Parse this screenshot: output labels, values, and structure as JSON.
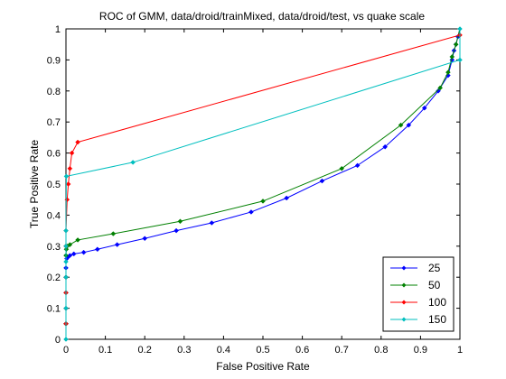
{
  "chart_data": {
    "type": "line",
    "title": "ROC of GMM, data/droid/trainMixed, data/droid/test, vs quake scale",
    "xlabel": "False Positive Rate",
    "ylabel": "True Positive Rate",
    "xlim": [
      0,
      1
    ],
    "ylim": [
      0,
      1
    ],
    "xticks": [
      0,
      0.1,
      0.2,
      0.3,
      0.4,
      0.5,
      0.6,
      0.7,
      0.8,
      0.9,
      1
    ],
    "yticks": [
      0,
      0.1,
      0.2,
      0.3,
      0.4,
      0.5,
      0.6,
      0.7,
      0.8,
      0.9,
      1
    ],
    "xtick_labels": [
      "0",
      "0.1",
      "0.2",
      "0.3",
      "0.4",
      "0.5",
      "0.6",
      "0.7",
      "0.8",
      "0.9",
      "1"
    ],
    "ytick_labels": [
      "0",
      "0.1",
      "0.2",
      "0.3",
      "0.4",
      "0.5",
      "0.6",
      "0.7",
      "0.8",
      "0.9",
      "1"
    ],
    "grid": false,
    "legend_position": "bottom-right",
    "series": [
      {
        "name": "25",
        "color": "#0000ff",
        "x": [
          0,
          0,
          0,
          0,
          0,
          0,
          0,
          0.002,
          0.005,
          0.01,
          0.02,
          0.045,
          0.08,
          0.13,
          0.2,
          0.28,
          0.37,
          0.47,
          0.56,
          0.65,
          0.74,
          0.81,
          0.87,
          0.91,
          0.945,
          0.97,
          0.98,
          0.985,
          0.99,
          0.995,
          1
        ],
        "y": [
          0,
          0.05,
          0.1,
          0.15,
          0.2,
          0.23,
          0.25,
          0.26,
          0.265,
          0.27,
          0.275,
          0.28,
          0.29,
          0.305,
          0.325,
          0.35,
          0.375,
          0.41,
          0.455,
          0.51,
          0.56,
          0.62,
          0.69,
          0.745,
          0.8,
          0.85,
          0.9,
          0.93,
          0.95,
          0.975,
          1
        ]
      },
      {
        "name": "50",
        "color": "#008000",
        "x": [
          0,
          0,
          0,
          0,
          0,
          0,
          0,
          0.001,
          0.003,
          0.01,
          0.03,
          0.12,
          0.29,
          0.5,
          0.7,
          0.85,
          0.95,
          0.97,
          0.98,
          0.99,
          1
        ],
        "y": [
          0,
          0.05,
          0.1,
          0.15,
          0.2,
          0.25,
          0.27,
          0.29,
          0.3,
          0.305,
          0.32,
          0.34,
          0.38,
          0.445,
          0.55,
          0.69,
          0.81,
          0.86,
          0.91,
          0.95,
          1
        ]
      },
      {
        "name": "100",
        "color": "#ff0000",
        "x": [
          0,
          0,
          0,
          0,
          0,
          0,
          0,
          0,
          0.003,
          0.006,
          0.01,
          0.015,
          0.03,
          1
        ],
        "y": [
          0,
          0.05,
          0.1,
          0.15,
          0.2,
          0.25,
          0.3,
          0.35,
          0.45,
          0.5,
          0.55,
          0.6,
          0.635,
          0.98
        ]
      },
      {
        "name": "150",
        "color": "#00bfbf",
        "x": [
          0,
          0,
          0,
          0,
          0,
          0,
          0.001,
          0.17,
          1,
          1
        ],
        "y": [
          0,
          0.1,
          0.2,
          0.25,
          0.3,
          0.35,
          0.525,
          0.57,
          0.9,
          1
        ]
      }
    ]
  }
}
